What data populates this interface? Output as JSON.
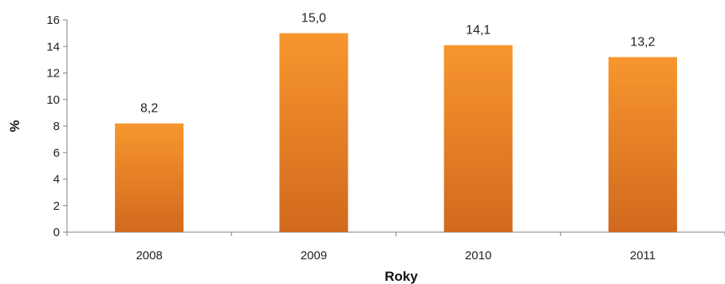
{
  "chart_data": {
    "type": "bar",
    "categories": [
      "2008",
      "2009",
      "2010",
      "2011"
    ],
    "values": [
      8.2,
      15.0,
      14.1,
      13.2
    ],
    "data_labels": [
      "8,2",
      "15,0",
      "14,1",
      "13,2"
    ],
    "xlabel": "Roky",
    "ylabel": "%",
    "ylim": [
      0,
      16
    ],
    "yticks": [
      0,
      2,
      4,
      6,
      8,
      10,
      12,
      14,
      16
    ],
    "grid": false,
    "legend": "none",
    "colors": {
      "bar_top": "#F7962E",
      "bar_bottom": "#D2691E",
      "axis": "#808080"
    }
  }
}
